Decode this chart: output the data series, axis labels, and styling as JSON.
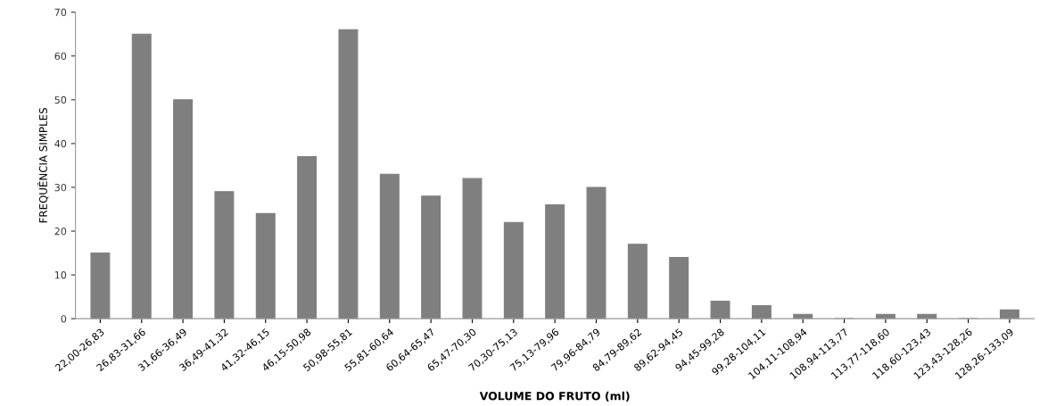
{
  "chart_data": {
    "type": "bar",
    "xlabel": "VOLUME DO FRUTO (ml)",
    "ylabel": "FREQUÊNCIA SIMPLES",
    "categories": [
      "22,00-26,83",
      "26,83-31,66",
      "31,66-36,49",
      "36,49-41,32",
      "41,32-46,15",
      "46,15-50,98",
      "50,98-55,81",
      "55,81-60,64",
      "60,64-65,47",
      "65,47-70,30",
      "70,30-75,13",
      "75,13-79,96",
      "79,96-84,79",
      "84,79-89,62",
      "89,62-94,45",
      "94,45-99,28",
      "99,28-104,11",
      "104,11-108,94",
      "108,94-113,77",
      "113,77-118,60",
      "118,60-123,43",
      "123,43-128,26",
      "128,26-133,09"
    ],
    "values": [
      15,
      65,
      50,
      29,
      24,
      37,
      66,
      33,
      28,
      32,
      22,
      26,
      30,
      17,
      14,
      4,
      3,
      1,
      0,
      1,
      1,
      0,
      2
    ],
    "color": "#7f7f7f",
    "ylim": [
      0,
      70
    ],
    "yticks": [
      0,
      10,
      20,
      30,
      40,
      50,
      60,
      70
    ],
    "grid": false
  }
}
